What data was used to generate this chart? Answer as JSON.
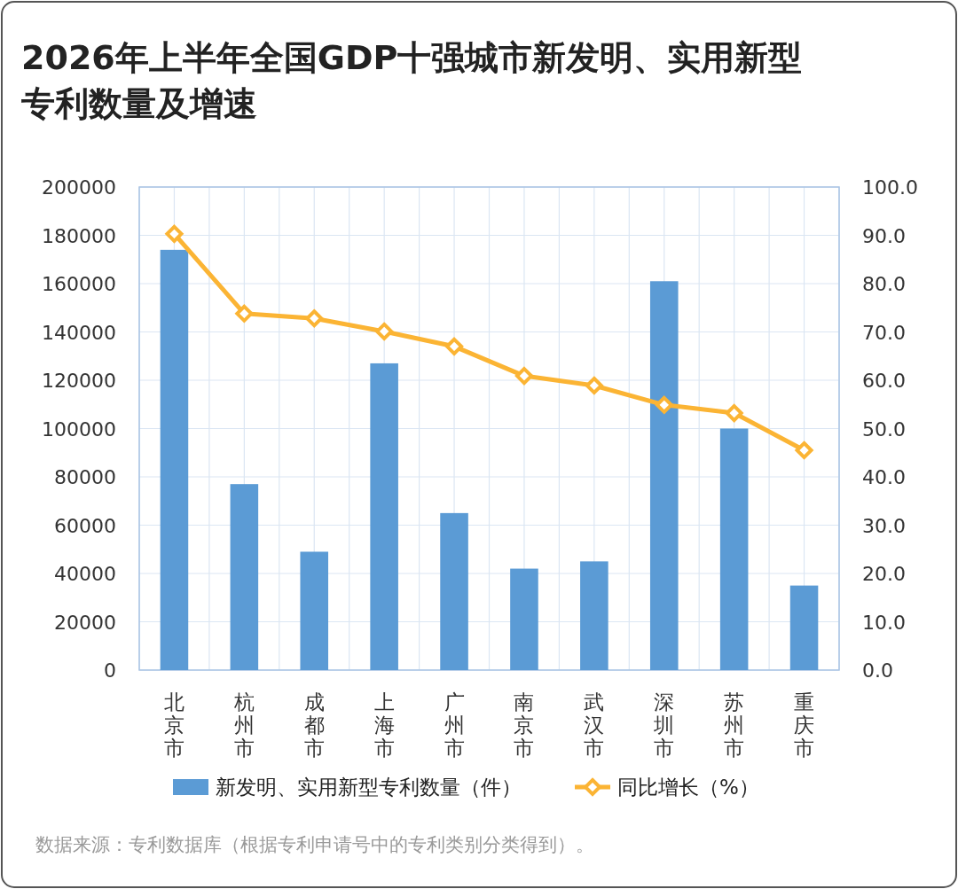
{
  "chart_data": {
    "type": "bar",
    "title": "2026年上半年全国GDP十强城市新发明、实用新型专利数量及增速",
    "categories": [
      "北京市",
      "杭州市",
      "成都市",
      "上海市",
      "广州市",
      "南京市",
      "武汉市",
      "深圳市",
      "苏州市",
      "重庆市"
    ],
    "series": [
      {
        "name": "新发明、实用新型专利数量（件）",
        "color": "#5b9bd5",
        "values": [
          174000,
          77000,
          49000,
          127000,
          65000,
          42000,
          45000,
          161000,
          100000,
          35000
        ]
      },
      {
        "name": "同比增长（%）",
        "type": "line",
        "axis": "y2",
        "color": "#fbb434",
        "marker": "diamond",
        "values": [
          90.3,
          73.8,
          72.8,
          70.1,
          67.0,
          60.9,
          58.9,
          54.9,
          53.2,
          45.5
        ]
      }
    ],
    "ylim": [
      0,
      200000
    ],
    "yticks": [
      0,
      20000,
      40000,
      60000,
      80000,
      100000,
      120000,
      140000,
      160000,
      180000,
      200000
    ],
    "y2lim": [
      0,
      100
    ],
    "y2ticks": [
      {
        "value": 0,
        "label": "0.0"
      },
      {
        "value": 10,
        "label": "10.0"
      },
      {
        "value": 20,
        "label": "20.0"
      },
      {
        "value": 30,
        "label": "30.0"
      },
      {
        "value": 40,
        "label": "40.0"
      },
      {
        "value": 50,
        "label": "50.0"
      },
      {
        "value": 60,
        "label": "60.0"
      },
      {
        "value": 70,
        "label": "70.0"
      },
      {
        "value": 80,
        "label": "80.0"
      },
      {
        "value": 90,
        "label": "90.0"
      },
      {
        "value": 100,
        "label": "100.0"
      }
    ],
    "grid": true,
    "legend": "bottom",
    "annotations": [
      "数据来源：专利数据库（根据专利申请号中的专利类别分类得到）。"
    ]
  }
}
